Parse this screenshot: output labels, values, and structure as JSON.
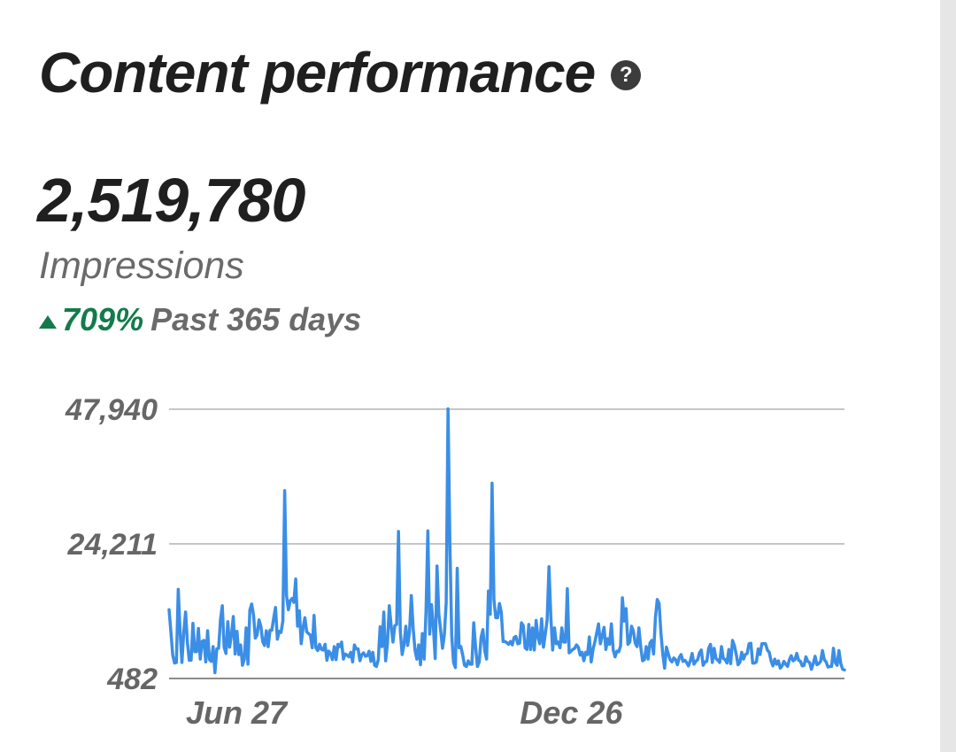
{
  "header": {
    "title": "Content performance",
    "help_icon": "question-circle-icon"
  },
  "summary": {
    "total": "2,519,780",
    "metric": "Impressions",
    "change_percent": "709%",
    "period": "Past 365 days",
    "change_direction": "up"
  },
  "colors": {
    "line": "#3b8ee6",
    "positive": "#137a4b",
    "grid": "#b3b3b3",
    "text_primary": "#1f1f1f",
    "text_secondary": "#6a6a6a"
  },
  "chart_data": {
    "type": "line",
    "title": "",
    "xlabel": "",
    "ylabel": "",
    "ylim": [
      482,
      47940
    ],
    "y_ticks": [
      "47,940",
      "24,211",
      "482"
    ],
    "y_tick_values": [
      47940,
      24211,
      482
    ],
    "x_ticks": [
      {
        "label": "Jun 27",
        "index": 13
      },
      {
        "label": "Dec 26",
        "index": 195
      }
    ],
    "grid": true,
    "legend": "none",
    "series": [
      {
        "values": [
          12600,
          8700,
          4600,
          3200,
          3300,
          16200,
          8800,
          3300,
          8700,
          12200,
          6800,
          3700,
          3700,
          10200,
          5200,
          5200,
          9300,
          3900,
          7000,
          7200,
          3400,
          8900,
          3800,
          3500,
          6100,
          1500,
          5700,
          5800,
          10800,
          13300,
          6000,
          4900,
          10500,
          6000,
          8200,
          11400,
          4800,
          8800,
          4700,
          6400,
          2800,
          3900,
          9400,
          3000,
          12500,
          13600,
          11700,
          7600,
          8200,
          10800,
          9700,
          7000,
          6300,
          8900,
          6100,
          9000,
          9000,
          11100,
          13000,
          7400,
          8800,
          8600,
          10600,
          33600,
          15100,
          12600,
          14200,
          14600,
          13900,
          18000,
          9700,
          12400,
          6600,
          9400,
          11200,
          8700,
          8400,
          8100,
          5900,
          11600,
          5900,
          5400,
          6500,
          5600,
          5500,
          6500,
          3700,
          5300,
          4900,
          3800,
          6100,
          3800,
          6500,
          6100,
          6900,
          3900,
          4800,
          4600,
          4300,
          5100,
          3400,
          6400,
          5700,
          5700,
          3600,
          4700,
          5000,
          4400,
          4500,
          5300,
          3500,
          5100,
          2800,
          2600,
          3800,
          9600,
          6100,
          12200,
          3600,
          6700,
          13300,
          9800,
          6900,
          9800,
          10000,
          26400,
          8800,
          4700,
          6400,
          9700,
          6300,
          8700,
          15100,
          9300,
          5500,
          3900,
          6400,
          2900,
          8400,
          3900,
          12300,
          26500,
          8300,
          13500,
          9600,
          4000,
          20300,
          11800,
          8900,
          5800,
          8200,
          13900,
          48000,
          24400,
          8100,
          3300,
          2400,
          19900,
          5900,
          6100,
          4600,
          2800,
          2600,
          3600,
          3000,
          3000,
          10300,
          6100,
          2600,
          3400,
          7700,
          9100,
          5400,
          3900,
          15900,
          11800,
          34900,
          14400,
          11200,
          11200,
          13700,
          12200,
          7000,
          7000,
          6800,
          6500,
          7000,
          6400,
          7700,
          7900,
          6600,
          6700,
          10300,
          9800,
          5900,
          5600,
          10000,
          5600,
          9400,
          5500,
          10700,
          7700,
          6600,
          11000,
          6000,
          8300,
          10800,
          20200,
          11400,
          5500,
          9400,
          6600,
          6900,
          5900,
          9400,
          6900,
          6900,
          16300,
          5000,
          5300,
          5600,
          5800,
          6400,
          6000,
          4600,
          5100,
          3600,
          5100,
          4700,
          7800,
          3400,
          5600,
          6900,
          8500,
          10100,
          6600,
          8000,
          9500,
          5600,
          7500,
          6500,
          10100,
          5500,
          4300,
          5300,
          5200,
          6200,
          14700,
          10600,
          12800,
          6500,
          6900,
          9700,
          8800,
          6700,
          6100,
          9400,
          6000,
          3600,
          3800,
          6100,
          3900,
          6700,
          7200,
          4800,
          11200,
          14400,
          13700,
          8500,
          4800,
          2300,
          6000,
          4800,
          3800,
          3400,
          4100,
          3800,
          2900,
          4200,
          4700,
          3500,
          3700,
          3300,
          2700,
          3600,
          4900,
          3000,
          3500,
          3800,
          5000,
          5500,
          2800,
          3400,
          3500,
          5800,
          6500,
          3300,
          5800,
          4000,
          3700,
          3300,
          6100,
          4000,
          3800,
          3200,
          5600,
          3100,
          7200,
          6300,
          4800,
          2900,
          3300,
          5100,
          3900,
          4700,
          4900,
          6600,
          6700,
          3200,
          3200,
          3400,
          5700,
          4700,
          6600,
          6600,
          6600,
          5500,
          5100,
          3600,
          2700,
          3900,
          3000,
          3600,
          2300,
          2700,
          3500,
          3000,
          2600,
          3800,
          4500,
          3600,
          3800,
          4900,
          3700,
          3500,
          2700,
          2800,
          4300,
          3500,
          3300,
          2100,
          3100,
          4400,
          2900,
          3100,
          3500,
          5400,
          3800,
          3400,
          2500,
          2600,
          2600,
          5800,
          3300,
          2800,
          5400,
          3100,
          2100,
          2000
        ]
      }
    ]
  }
}
